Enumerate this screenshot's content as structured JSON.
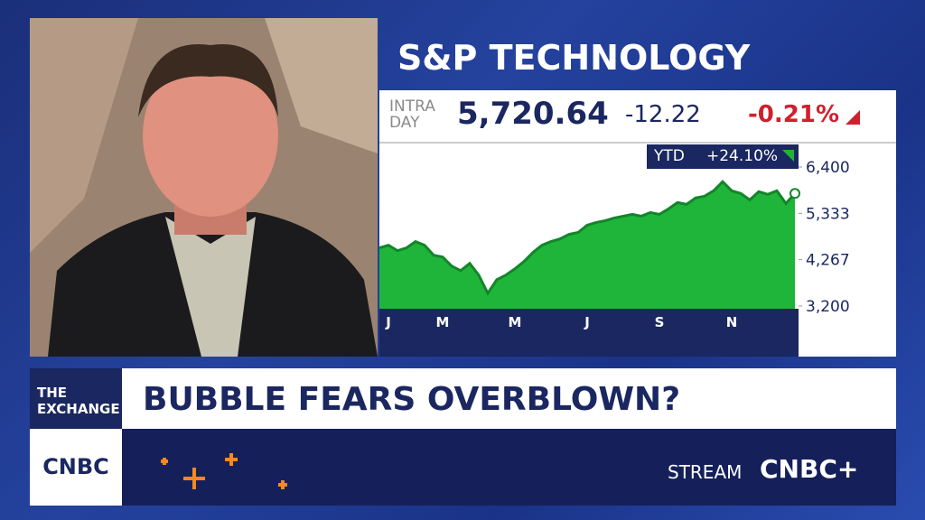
{
  "chart_data": {
    "type": "area",
    "title": "S&P TECHNOLOGY",
    "quote": {
      "label": "INTRA DAY",
      "price": "5,720.64",
      "change": "-12.22",
      "change_pct": "-0.21%"
    },
    "ytd": {
      "label": "YTD",
      "value": "+24.10%"
    },
    "categories": [
      null,
      "J",
      null,
      null,
      null,
      null,
      null,
      "M",
      null,
      null,
      null,
      null,
      null,
      null,
      null,
      "M",
      null,
      null,
      null,
      null,
      null,
      null,
      null,
      "J",
      null,
      null,
      null,
      null,
      null,
      null,
      null,
      "S",
      null,
      null,
      null,
      null,
      null,
      null,
      null,
      "N",
      null,
      null,
      null,
      null,
      null,
      null,
      null
    ],
    "series": [
      {
        "color": "#1fb53a",
        "values": [
          4538,
          4600,
          4475,
          4538,
          4684,
          4600,
          4370,
          4329,
          4120,
          4015,
          4182,
          3911,
          3493,
          3806,
          3911,
          4057,
          4224,
          4433,
          4600,
          4684,
          4747,
          4851,
          4893,
          5060,
          5123,
          5165,
          5227,
          5269,
          5311,
          5269,
          5353,
          5311,
          5436,
          5583,
          5541,
          5687,
          5729,
          5854,
          6063,
          5854,
          5792,
          5645,
          5833,
          5771,
          5854,
          5562,
          5792
        ]
      }
    ],
    "ylim": [
      3137,
      6941
    ],
    "yticks": [
      {
        "value": 3200,
        "label": "3,200"
      },
      {
        "value": 4267,
        "label": "4,267"
      },
      {
        "value": 5333,
        "label": "5,333"
      },
      {
        "value": 6400,
        "label": "6,400"
      }
    ]
  },
  "show": {
    "segment": "THE EXCHANGE",
    "headline": "BUBBLE FEARS OVERBLOWN?",
    "network": "CNBC",
    "stream": "STREAM",
    "stream_brand": "CNBC+"
  }
}
